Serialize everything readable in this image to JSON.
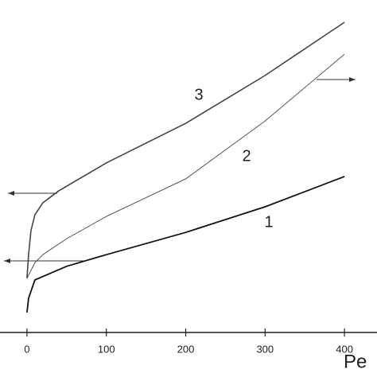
{
  "chart_data": {
    "type": "line",
    "xlabel": "Pe",
    "xlim": [
      -34,
      441
    ],
    "ylim": [
      0,
      100
    ],
    "xticks": [
      0,
      100,
      200,
      300,
      400
    ],
    "series": [
      {
        "name": "1",
        "color": "#111111",
        "width": 1.8,
        "x": [
          0,
          2,
          10,
          50,
          100,
          200,
          300,
          400
        ],
        "values": [
          6,
          10.3,
          15.8,
          19.9,
          23.4,
          30.1,
          37.8,
          46.9
        ]
      },
      {
        "name": "2",
        "color": "#555555",
        "width": 1,
        "x": [
          0,
          10,
          20,
          50,
          100,
          200,
          300,
          400
        ],
        "values": [
          16.3,
          21,
          23.4,
          28.2,
          34.9,
          46.2,
          63.6,
          83.7
        ]
      },
      {
        "name": "3",
        "color": "#444444",
        "width": 1.6,
        "x": [
          0,
          2,
          5,
          10,
          20,
          40,
          100,
          200,
          300,
          400
        ],
        "values": [
          16.3,
          23.4,
          30.6,
          35.4,
          39,
          42.6,
          51,
          62.9,
          77.3,
          93.3
        ]
      }
    ]
  }
}
